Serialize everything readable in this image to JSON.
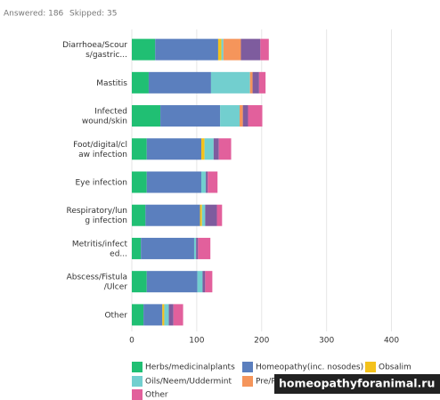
{
  "header": {
    "answered": "Answered: 186",
    "skipped": "Skipped: 35"
  },
  "watermark": "homeopathyforanimal.ru",
  "chart_data": {
    "type": "stacked-bar-horizontal",
    "categories": [
      "Diarrhoea/Scour\ns/gastric...",
      "Mastitis",
      "Infected\nwound/skin",
      "Foot/digital/cl\naw infection",
      "Eye infection",
      "Respiratory/lun\ng infection",
      "Metritis/infect\ned...",
      "Abscess/Fistula\n/Ulcer",
      "Other"
    ],
    "series": [
      {
        "name": "Herbs/medicinalplants",
        "color": "#20bf73",
        "values": [
          36,
          26,
          44,
          23,
          23,
          21,
          14,
          23,
          18
        ]
      },
      {
        "name": "Homeopathy(inc. nosodes)",
        "color": "#5b7fbe",
        "values": [
          97,
          96,
          92,
          84,
          84,
          84,
          82,
          78,
          29
        ]
      },
      {
        "name": "Obsalim",
        "color": "#f4c21c",
        "values": [
          5,
          0,
          0,
          5,
          0,
          3,
          0,
          0,
          3
        ]
      },
      {
        "name": "Oils/Neem/Uddermint",
        "color": "#72cfcf",
        "values": [
          3,
          60,
          30,
          14,
          7,
          5,
          3,
          8,
          7
        ]
      },
      {
        "name": "Pre/Pro",
        "color": "#f5955b",
        "values": [
          27,
          4,
          5,
          0,
          0,
          0,
          0,
          0,
          0
        ]
      },
      {
        "name": null,
        "color": "#7e5c9e",
        "values": [
          30,
          10,
          8,
          8,
          3,
          18,
          3,
          4,
          7
        ]
      },
      {
        "name": "Other",
        "color": "#e2609c",
        "values": [
          13,
          10,
          22,
          19,
          15,
          8,
          19,
          11,
          15
        ]
      }
    ],
    "xlim": [
      0,
      450
    ],
    "xticks": [
      0,
      100,
      200,
      300,
      400
    ],
    "grid": true
  }
}
